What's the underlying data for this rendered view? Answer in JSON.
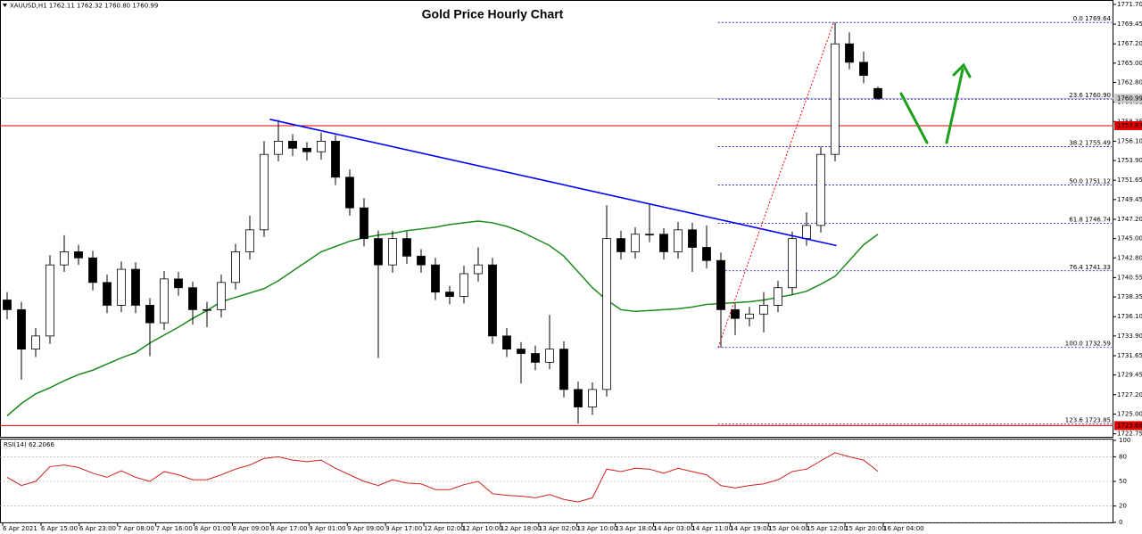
{
  "chart_data": {
    "type": "candlestick",
    "title": "Gold Price Hourly Chart",
    "header": "XAUUSD,H1  1762.11 1762.32 1760.80 1760.99",
    "xlim": [
      -0.5,
      77.5
    ],
    "ylim": [
      1722.3,
      1772.2
    ],
    "yticks": [
      {
        "value": 1771.7,
        "label": "1771.70"
      },
      {
        "value": 1769.45,
        "label": "1769.45"
      },
      {
        "value": 1767.2,
        "label": "1767.20"
      },
      {
        "value": 1765,
        "label": "1765.00"
      },
      {
        "value": 1762.8,
        "label": "1762.80"
      },
      {
        "value": 1760.55,
        "label": "1760.55"
      },
      {
        "value": 1758.35,
        "label": "1758.35"
      },
      {
        "value": 1756.1,
        "label": "1756.10"
      },
      {
        "value": 1753.9,
        "label": "1753.90"
      },
      {
        "value": 1751.65,
        "label": "1751.65"
      },
      {
        "value": 1749.45,
        "label": "1749.45"
      },
      {
        "value": 1747.2,
        "label": "1747.20"
      },
      {
        "value": 1745,
        "label": "1745.00"
      },
      {
        "value": 1742.8,
        "label": "1742.80"
      },
      {
        "value": 1740.55,
        "label": "1740.55"
      },
      {
        "value": 1738.35,
        "label": "1738.35"
      },
      {
        "value": 1736.1,
        "label": "1736.10"
      },
      {
        "value": 1733.9,
        "label": "1733.90"
      },
      {
        "value": 1731.65,
        "label": "1731.65"
      },
      {
        "value": 1729.45,
        "label": "1729.45"
      },
      {
        "value": 1727.2,
        "label": "1727.20"
      },
      {
        "value": 1725,
        "label": "1725.00"
      },
      {
        "value": 1722.75,
        "label": "1722.75"
      }
    ],
    "x_labels": [
      "6 Apr 2021",
      "6 Apr 15:00",
      "6 Apr 23:00",
      "7 Apr 08:00",
      "7 Apr 16:00",
      "8 Apr 01:00",
      "8 Apr 09:00",
      "8 Apr 17:00",
      "9 Apr 01:00",
      "9 Apr 09:00",
      "9 Apr 17:00",
      "12 Apr 02:00",
      "12 Apr 10:00",
      "12 Apr 18:00",
      "13 Apr 02:00",
      "13 Apr 10:00",
      "13 Apr 18:00",
      "14 Apr 03:00",
      "14 Apr 11:00",
      "14 Apr 19:00",
      "15 Apr 04:00",
      "15 Apr 12:00",
      "15 Apr 20:00",
      "16 Apr 04:00"
    ],
    "candles": {
      "up_color": "#ffffff",
      "down_color": "#000000",
      "edge_color": "#000000",
      "open": [
        1738.0,
        1736.9,
        1732.4,
        1733.9,
        1742.0,
        1743.5,
        1742.8,
        1740.0,
        1737.4,
        1741.5,
        1737.4,
        1735.4,
        1740.4,
        1739.4,
        1736.9,
        1736.9,
        1740.0,
        1743.5,
        1746.0,
        1754.6,
        1756.1,
        1755.3,
        1754.9,
        1756.1,
        1752.0,
        1748.5,
        1745.0,
        1742.0,
        1745.0,
        1743.0,
        1742.0,
        1738.9,
        1738.4,
        1741.0,
        1742.0,
        1733.9,
        1732.4,
        1731.9,
        1730.9,
        1732.4,
        1727.8,
        1725.8,
        1727.8,
        1745.0,
        1743.5,
        1745.5,
        1745.5,
        1743.5,
        1746.0,
        1744.0,
        1742.5,
        1736.9,
        1735.9,
        1736.4,
        1737.4,
        1739.4,
        1745.0,
        1746.5,
        1754.6,
        1767.2,
        1765.1,
        1762.11
      ],
      "high": [
        1738.9,
        1737.8,
        1734.8,
        1743.1,
        1745.4,
        1744.3,
        1743.6,
        1740.9,
        1742.4,
        1742.3,
        1738.2,
        1741.3,
        1741.2,
        1740.1,
        1737.8,
        1740.9,
        1744.4,
        1747.6,
        1756.1,
        1758.5,
        1756.9,
        1756.0,
        1757.1,
        1756.8,
        1752.9,
        1749.6,
        1745.9,
        1745.9,
        1745.8,
        1743.8,
        1742.8,
        1739.6,
        1741.9,
        1744.0,
        1742.8,
        1734.8,
        1733.2,
        1732.8,
        1736.3,
        1733.3,
        1728.7,
        1728.6,
        1748.8,
        1745.9,
        1746.3,
        1748.9,
        1746.2,
        1746.9,
        1746.8,
        1746.5,
        1743.4,
        1737.6,
        1737.2,
        1738.9,
        1740.2,
        1745.8,
        1748.0,
        1755.5,
        1769.64,
        1768.5,
        1766.3,
        1762.32
      ],
      "low": [
        1735.8,
        1728.9,
        1731.5,
        1733.0,
        1741.2,
        1742.0,
        1739.1,
        1736.5,
        1736.6,
        1736.5,
        1731.6,
        1734.6,
        1738.5,
        1735.2,
        1734.9,
        1736.0,
        1739.2,
        1742.6,
        1745.2,
        1753.8,
        1754.4,
        1753.9,
        1754.0,
        1751.1,
        1747.6,
        1744.1,
        1731.4,
        1741.1,
        1742.1,
        1741.1,
        1738.0,
        1737.5,
        1737.6,
        1740.1,
        1733.0,
        1731.5,
        1728.5,
        1730.0,
        1730.1,
        1726.9,
        1723.9,
        1724.9,
        1727.0,
        1742.6,
        1742.7,
        1744.6,
        1742.6,
        1742.7,
        1741.2,
        1741.6,
        1732.59,
        1734.0,
        1735.0,
        1734.3,
        1736.6,
        1738.6,
        1744.2,
        1745.7,
        1753.8,
        1764.3,
        1762.7,
        1760.8
      ],
      "close": [
        1736.9,
        1732.4,
        1733.9,
        1742.0,
        1743.5,
        1742.8,
        1740.0,
        1737.4,
        1741.5,
        1737.4,
        1735.4,
        1740.4,
        1739.4,
        1736.9,
        1736.9,
        1740.0,
        1743.5,
        1746.0,
        1754.6,
        1756.1,
        1755.3,
        1754.9,
        1756.1,
        1752.0,
        1748.5,
        1745.0,
        1742.0,
        1745.0,
        1743.0,
        1742.0,
        1738.9,
        1738.4,
        1741.0,
        1742.0,
        1733.9,
        1732.4,
        1731.9,
        1730.9,
        1732.4,
        1727.8,
        1725.8,
        1727.8,
        1745.0,
        1743.5,
        1745.5,
        1745.5,
        1743.5,
        1746.0,
        1744.0,
        1742.5,
        1736.9,
        1735.9,
        1736.4,
        1737.4,
        1739.4,
        1745.0,
        1746.5,
        1754.6,
        1767.2,
        1765.1,
        1763.6,
        1760.99
      ]
    },
    "moving_average": {
      "color": "#1a8a1a",
      "values": [
        1724.8,
        1726.2,
        1727.3,
        1728.0,
        1728.8,
        1729.5,
        1730.0,
        1730.7,
        1731.4,
        1732.0,
        1733.1,
        1734.0,
        1734.9,
        1735.9,
        1736.8,
        1737.8,
        1738.3,
        1738.8,
        1739.3,
        1740.2,
        1741.3,
        1742.4,
        1743.5,
        1744.1,
        1744.7,
        1745.1,
        1745.4,
        1745.6,
        1745.9,
        1746.1,
        1746.3,
        1746.6,
        1746.8,
        1747.0,
        1746.8,
        1746.4,
        1745.8,
        1745.0,
        1744.2,
        1743.0,
        1741.2,
        1739.4,
        1738.0,
        1736.9,
        1736.7,
        1736.8,
        1736.9,
        1737.0,
        1737.2,
        1737.5,
        1737.6,
        1737.7,
        1737.8,
        1738.0,
        1738.3,
        1738.6,
        1739.0,
        1739.8,
        1740.7,
        1742.5,
        1744.3,
        1745.5
      ]
    },
    "trendline": {
      "color": "#0000ff",
      "x": [
        18.4,
        58.1
      ],
      "y": [
        1758.6,
        1744.2
      ]
    },
    "fib_line": {
      "color": "#ff0000",
      "x": [
        49.8,
        57.9
      ],
      "y": [
        1732.59,
        1769.64
      ]
    },
    "fibonacci": {
      "color": "#0000cc",
      "start_x": 49.8,
      "labels": [
        "0.0 1769.64",
        "23.6 1760.90",
        "38.2 1755.49",
        "50.0 1751.12",
        "61.8 1746.74",
        "76.4 1741.33",
        "100.0 1732.59",
        "123.6 1723.85"
      ],
      "values": [
        1769.64,
        1760.9,
        1755.49,
        1751.12,
        1746.74,
        1741.33,
        1732.59,
        1723.85
      ]
    },
    "price_lines": [
      {
        "value": 1760.99,
        "label": "1760.99",
        "color": "#c8c8c8",
        "text_color": "#000000"
      },
      {
        "value": 1757.87,
        "label": "1757.87",
        "color": "#e00000",
        "text_color": "#ffffff"
      },
      {
        "value": 1723.68,
        "label": "1723.68",
        "color": "#e00000",
        "text_color": "#ffffff"
      }
    ],
    "rsi": {
      "label": "RSI(14) 62.2066",
      "color": "#d02020",
      "ylim": [
        0,
        100
      ],
      "yticks": [
        100,
        80,
        50,
        20,
        0
      ],
      "values": [
        55,
        45,
        50,
        68,
        70,
        67,
        60,
        55,
        63,
        55,
        50,
        62,
        58,
        52,
        52,
        58,
        65,
        70,
        78,
        80,
        76,
        74,
        76,
        66,
        58,
        50,
        45,
        52,
        48,
        47,
        40,
        40,
        46,
        50,
        35,
        33,
        32,
        30,
        34,
        28,
        25,
        30,
        65,
        62,
        66,
        65,
        60,
        66,
        62,
        58,
        45,
        42,
        45,
        47,
        52,
        62,
        65,
        75,
        85,
        80,
        76,
        62.2066
      ]
    }
  }
}
